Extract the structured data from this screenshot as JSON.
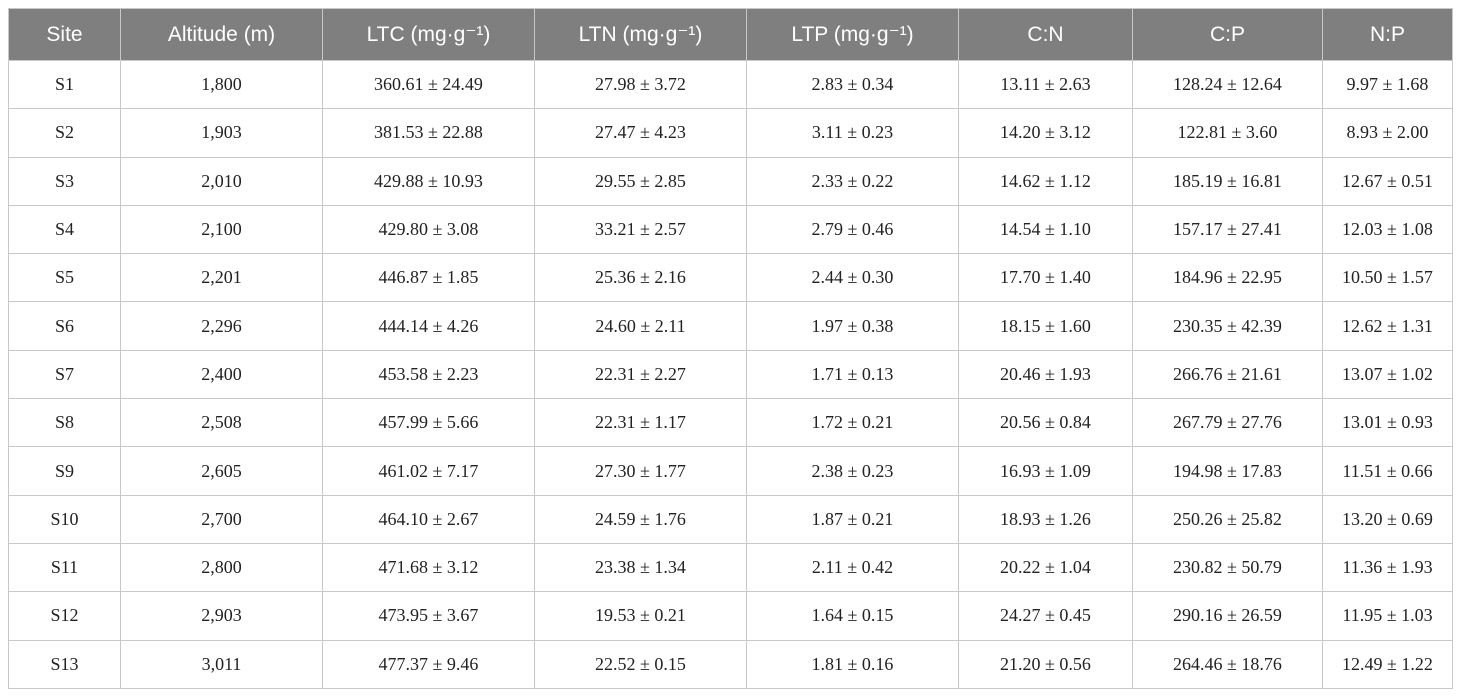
{
  "table": {
    "header": [
      "Site",
      "Altitude (m)",
      "LTC (mg·g⁻¹)",
      "LTN (mg·g⁻¹)",
      "LTP (mg·g⁻¹)",
      "C:N",
      "C:P",
      "N:P"
    ],
    "rows": [
      [
        "S1",
        "1,800",
        "360.61 ± 24.49",
        "27.98 ± 3.72",
        "2.83 ± 0.34",
        "13.11 ± 2.63",
        "128.24 ± 12.64",
        "9.97 ± 1.68"
      ],
      [
        "S2",
        "1,903",
        "381.53 ± 22.88",
        "27.47 ± 4.23",
        "3.11 ± 0.23",
        "14.20 ± 3.12",
        "122.81 ± 3.60",
        "8.93 ± 2.00"
      ],
      [
        "S3",
        "2,010",
        "429.88 ± 10.93",
        "29.55 ± 2.85",
        "2.33 ± 0.22",
        "14.62 ± 1.12",
        "185.19 ± 16.81",
        "12.67 ± 0.51"
      ],
      [
        "S4",
        "2,100",
        "429.80 ± 3.08",
        "33.21 ± 2.57",
        "2.79 ± 0.46",
        "14.54 ± 1.10",
        "157.17 ± 27.41",
        "12.03 ± 1.08"
      ],
      [
        "S5",
        "2,201",
        "446.87 ± 1.85",
        "25.36 ± 2.16",
        "2.44 ± 0.30",
        "17.70 ± 1.40",
        "184.96 ± 22.95",
        "10.50 ± 1.57"
      ],
      [
        "S6",
        "2,296",
        "444.14 ± 4.26",
        "24.60 ± 2.11",
        "1.97 ± 0.38",
        "18.15 ± 1.60",
        "230.35 ± 42.39",
        "12.62 ± 1.31"
      ],
      [
        "S7",
        "2,400",
        "453.58 ± 2.23",
        "22.31 ± 2.27",
        "1.71 ± 0.13",
        "20.46 ± 1.93",
        "266.76 ± 21.61",
        "13.07 ± 1.02"
      ],
      [
        "S8",
        "2,508",
        "457.99 ± 5.66",
        "22.31 ± 1.17",
        "1.72 ± 0.21",
        "20.56 ± 0.84",
        "267.79 ± 27.76",
        "13.01 ± 0.93"
      ],
      [
        "S9",
        "2,605",
        "461.02 ± 7.17",
        "27.30 ± 1.77",
        "2.38 ± 0.23",
        "16.93 ± 1.09",
        "194.98 ± 17.83",
        "11.51 ± 0.66"
      ],
      [
        "S10",
        "2,700",
        "464.10 ± 2.67",
        "24.59 ± 1.76",
        "1.87 ± 0.21",
        "18.93 ± 1.26",
        "250.26 ± 25.82",
        "13.20 ± 0.69"
      ],
      [
        "S11",
        "2,800",
        "471.68 ± 3.12",
        "23.38 ± 1.34",
        "2.11 ± 0.42",
        "20.22 ± 1.04",
        "230.82 ± 50.79",
        "11.36 ± 1.93"
      ],
      [
        "S12",
        "2,903",
        "473.95 ± 3.67",
        "19.53 ± 0.21",
        "1.64 ± 0.15",
        "24.27 ± 0.45",
        "290.16 ± 26.59",
        "11.95 ± 1.03"
      ],
      [
        "S13",
        "3,011",
        "477.37 ± 9.46",
        "22.52 ± 0.15",
        "1.81 ± 0.16",
        "21.20 ± 0.56",
        "264.46 ± 18.76",
        "12.49 ± 1.22"
      ]
    ]
  }
}
